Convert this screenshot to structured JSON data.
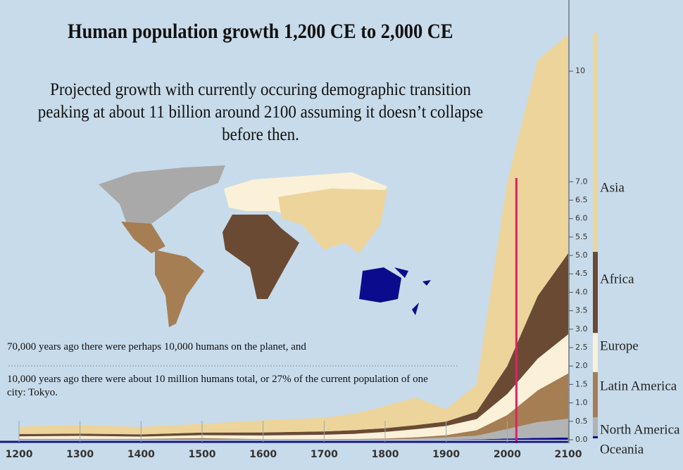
{
  "chart_data": {
    "type": "stacked-area",
    "title": "Human population growth 1,200 CE to 2,000 CE",
    "subtitle": "Projected growth with currently occuring demographic transition peaking at about 11 billion around 2100 assuming it doesn’t collapse before then.",
    "annotations": [
      "70,000 years ago there were perhaps 10,000 humans on the planet, and",
      "10,000 years ago there were about 10 million humans total, or 27% of the current population of one city: Tokyo."
    ],
    "x": [
      1200,
      1300,
      1400,
      1500,
      1600,
      1700,
      1750,
      1800,
      1850,
      1900,
      1950,
      2000,
      2050,
      2100
    ],
    "series": [
      {
        "name": "Oceania",
        "color": "#0b0b8e",
        "values": [
          0.002,
          0.002,
          0.002,
          0.002,
          0.002,
          0.002,
          0.002,
          0.002,
          0.002,
          0.005,
          0.01,
          0.03,
          0.05,
          0.06
        ]
      },
      {
        "name": "North America",
        "color": "#b2b3b4",
        "values": [
          0.002,
          0.003,
          0.003,
          0.003,
          0.003,
          0.002,
          0.003,
          0.007,
          0.026,
          0.06,
          0.1,
          0.26,
          0.43,
          0.51
        ]
      },
      {
        "name": "Latin America",
        "color": "#a57e53",
        "values": [
          0.02,
          0.02,
          0.02,
          0.04,
          0.012,
          0.012,
          0.016,
          0.024,
          0.038,
          0.06,
          0.15,
          0.38,
          0.86,
          1.23
        ]
      },
      {
        "name": "Europe",
        "color": "#fbf1d8",
        "values": [
          0.07,
          0.08,
          0.06,
          0.08,
          0.1,
          0.12,
          0.14,
          0.18,
          0.22,
          0.25,
          0.3,
          0.57,
          0.86,
          1.06
        ]
      },
      {
        "name": "Africa",
        "color": "#6b4a34",
        "values": [
          0.06,
          0.06,
          0.06,
          0.07,
          0.08,
          0.09,
          0.1,
          0.1,
          0.11,
          0.12,
          0.2,
          0.76,
          1.7,
          2.2
        ]
      },
      {
        "name": "Asia",
        "color": "#ecd49b",
        "values": [
          0.2,
          0.24,
          0.2,
          0.24,
          0.33,
          0.37,
          0.45,
          0.6,
          0.75,
          0.33,
          0.74,
          5.0,
          6.4,
          5.94
        ]
      }
    ],
    "marker": {
      "x": 2015,
      "color": "#e0206a"
    },
    "xlim": [
      1200,
      2100
    ],
    "xticks": [
      1200,
      1300,
      1400,
      1500,
      1600,
      1700,
      1800,
      1900,
      2000,
      2100
    ],
    "ylim": [
      0,
      11.93
    ],
    "yticks": [
      {
        "value": 0,
        "label": "0.0"
      },
      0.5,
      {
        "value": 1,
        "label": "1.0"
      },
      1.5,
      {
        "value": 2,
        "label": "2.0"
      },
      2.5,
      {
        "value": 3,
        "label": "3.0"
      },
      3.5,
      {
        "value": 4,
        "label": "4.0"
      },
      4.5,
      {
        "value": 5,
        "label": "5.0"
      },
      5.5,
      {
        "value": 6,
        "label": "6.0"
      },
      6.5,
      {
        "value": 7,
        "label": "7.0"
      },
      10
    ]
  }
}
